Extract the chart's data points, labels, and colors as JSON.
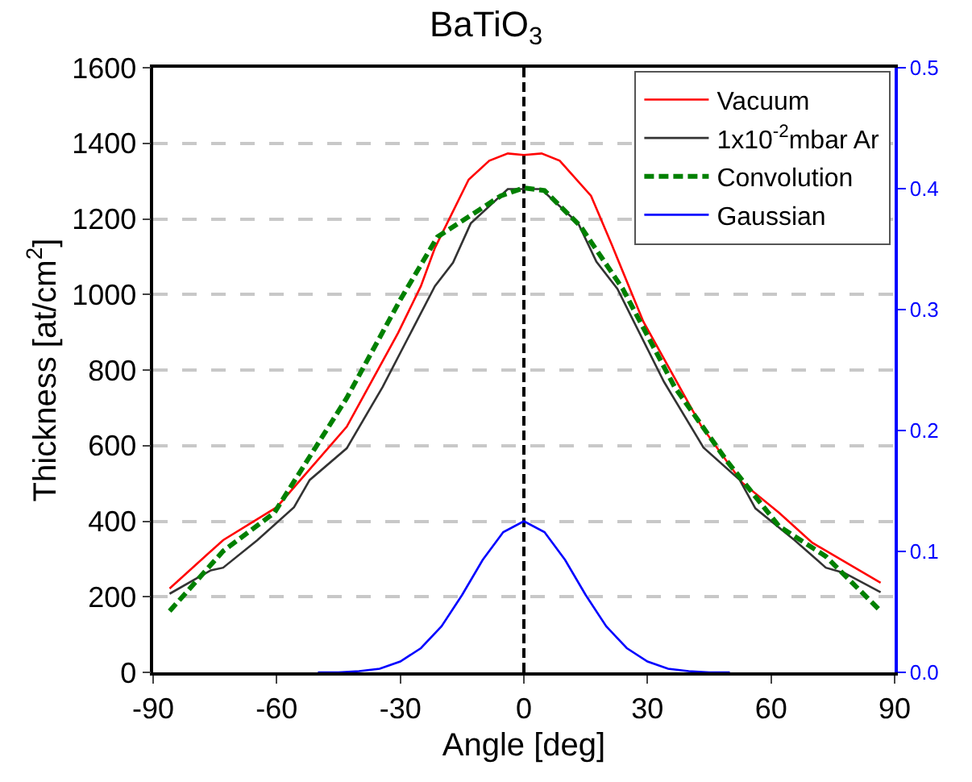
{
  "chart_data": {
    "type": "line",
    "title": "BaTiO$_{3}$",
    "xlabel": "Angle [deg]",
    "ylabel": "Thickness [at/cm$^{2}$]",
    "xlim": [
      -90,
      90
    ],
    "xticks": [
      -90,
      -60,
      -30,
      0,
      30,
      60,
      90
    ],
    "ylim": [
      0,
      1600
    ],
    "yticks": [
      0,
      200,
      400,
      600,
      800,
      1000,
      1200,
      1400,
      1600
    ],
    "y2lim": [
      0,
      0.5
    ],
    "y2ticks": [
      {
        "value": 0,
        "label": "0.0"
      },
      0.1,
      0.2,
      0.3,
      0.4,
      0.5
    ],
    "grid": "y",
    "legend": "top right",
    "ref_lines": [
      {
        "axis": "x",
        "value": 0,
        "color": "#000000",
        "line_style": "dashed"
      }
    ],
    "series": [
      {
        "name": "Vacuum",
        "color": "#ff0000",
        "line_style": "solid",
        "x": [
          -86,
          -73,
          -60,
          -43,
          -30.5,
          -25,
          -21.6,
          -13.4,
          -8.4,
          -3.9,
          0,
          4.3,
          8.7,
          16.3,
          21.4,
          29,
          43,
          53,
          62,
          70,
          86.6
        ],
        "values": [
          222,
          350,
          437,
          650,
          899,
          1022,
          1123,
          1304,
          1354,
          1373,
          1369,
          1373,
          1354,
          1261,
          1130,
          928,
          653,
          502,
          422,
          343,
          237
        ]
      },
      {
        "name": "1x10$^{-2}$mbar Ar",
        "color": "#333333",
        "line_style": "solid",
        "x": [
          -86,
          -76,
          -73,
          -64.7,
          -55.8,
          -52,
          -43,
          -34.3,
          -21.6,
          -17.2,
          -12.9,
          -3.9,
          0,
          4.2,
          13.2,
          17.6,
          22.7,
          34,
          43.6,
          52.4,
          56.2,
          65.7,
          73.3,
          77.8,
          86.6
        ],
        "values": [
          208,
          270,
          277,
          350,
          437,
          509,
          593,
          755,
          1022,
          1084,
          1188,
          1279,
          1279,
          1279,
          1188,
          1087,
          1015,
          769,
          595,
          509,
          434,
          350,
          277,
          263,
          212
        ]
      },
      {
        "name": "Convolution",
        "color": "#008000",
        "line_style": "dashed",
        "x": [
          -86,
          -73,
          -60.6,
          -43,
          -30,
          -21,
          -5.6,
          0,
          5,
          13.7,
          24,
          36.6,
          49.3,
          62,
          73.3,
          86.6
        ],
        "values": [
          162,
          321,
          422,
          726,
          986,
          1152,
          1261,
          1282,
          1275,
          1181,
          1015,
          755,
          559,
          386,
          307,
          162
        ]
      },
      {
        "name": "Gaussian",
        "color": "#0000ff",
        "line_style": "solid",
        "axis": "y2",
        "x": [
          -50,
          -45,
          -40,
          -35,
          -30,
          -25,
          -20,
          -15,
          -10,
          -5,
          0,
          5,
          10,
          15,
          20,
          25,
          30,
          35,
          40,
          45,
          50
        ],
        "values": [
          0,
          0,
          0.001,
          0.003,
          0.009,
          0.02,
          0.038,
          0.064,
          0.093,
          0.116,
          0.125,
          0.116,
          0.093,
          0.064,
          0.038,
          0.02,
          0.009,
          0.003,
          0.001,
          0,
          0
        ]
      }
    ]
  }
}
